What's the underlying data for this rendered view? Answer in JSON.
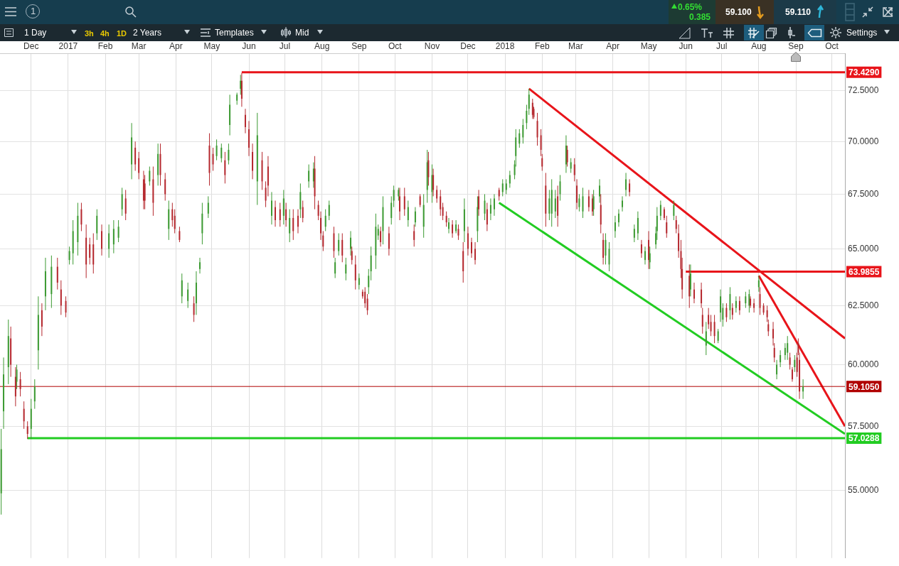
{
  "chart_data": {
    "type": "candlestick",
    "annotations": [
      "1",
      "0.65%",
      "0.385",
      "59.100",
      "59.110",
      "1 Day",
      "3h",
      "4h",
      "1D",
      "2 Years",
      "Templates",
      "Mid",
      "Settings"
    ],
    "x": [
      "2016-11-06",
      "2016-11-08",
      "2016-11-12",
      "2016-11-14",
      "2016-11-18",
      "2016-11-19",
      "2016-11-22",
      "2016-11-25",
      "2016-11-28",
      "2016-12-01",
      "2016-12-04",
      "2016-12-07",
      "2016-12-10",
      "2016-12-13",
      "2016-12-18",
      "2016-12-23",
      "2016-12-26",
      "2016-12-30",
      "2017-01-02",
      "2017-01-05",
      "2017-01-09",
      "2017-01-12",
      "2017-01-16",
      "2017-01-19",
      "2017-01-22",
      "2017-01-25",
      "2017-01-29",
      "2017-02-04",
      "2017-02-08",
      "2017-02-12",
      "2017-02-15",
      "2017-02-18",
      "2017-02-23",
      "2017-02-26",
      "2017-03-01",
      "2017-03-05",
      "2017-03-06",
      "2017-03-10",
      "2017-03-13",
      "2017-03-17",
      "2017-03-19",
      "2017-03-23",
      "2017-03-26",
      "2017-03-29",
      "2017-03-31",
      "2017-04-04",
      "2017-04-06",
      "2017-04-11",
      "2017-04-16",
      "2017-04-18",
      "2017-04-21",
      "2017-04-23",
      "2017-04-28",
      "2017-04-29",
      "2017-05-02",
      "2017-05-05",
      "2017-05-09",
      "2017-05-12",
      "2017-05-15",
      "2017-05-16",
      "2017-05-22",
      "2017-05-25",
      "2017-05-26",
      "2017-05-29",
      "2017-06-01",
      "2017-06-04",
      "2017-06-08",
      "2017-06-12",
      "2017-06-15",
      "2017-06-17",
      "2017-06-20",
      "2017-06-23",
      "2017-06-27",
      "2017-06-30",
      "2017-07-02",
      "2017-07-05",
      "2017-07-08",
      "2017-07-12",
      "2017-07-14",
      "2017-07-16",
      "2017-07-21",
      "2017-07-25",
      "2017-07-26",
      "2017-07-29",
      "2017-07-31",
      "2017-08-02",
      "2017-08-04",
      "2017-08-07",
      "2017-08-11",
      "2017-08-12",
      "2017-08-15",
      "2017-08-18",
      "2017-08-21",
      "2017-08-25",
      "2017-08-26",
      "2017-08-29",
      "2017-09-01",
      "2017-09-04",
      "2017-09-06",
      "2017-09-08",
      "2017-09-09",
      "2017-09-11",
      "2017-09-15",
      "2017-09-17",
      "2017-09-19",
      "2017-09-21",
      "2017-09-26",
      "2017-09-28",
      "2017-09-30",
      "2017-10-04",
      "2017-10-05",
      "2017-10-09",
      "2017-10-12",
      "2017-10-17",
      "2017-10-18",
      "2017-10-22",
      "2017-10-25",
      "2017-10-28",
      "2017-10-29",
      "2017-11-01",
      "2017-11-02",
      "2017-11-05",
      "2017-11-08",
      "2017-11-10",
      "2017-11-13",
      "2017-11-15",
      "2017-11-18",
      "2017-11-21",
      "2017-11-23",
      "2017-11-27",
      "2017-11-28",
      "2017-12-01",
      "2017-12-04",
      "2017-12-07",
      "2017-12-09",
      "2017-12-10",
      "2017-12-15",
      "2017-12-17",
      "2017-12-20",
      "2017-12-23",
      "2017-12-27",
      "2017-12-30",
      "2018-01-02",
      "2018-01-05",
      "2018-01-09",
      "2018-01-10",
      "2018-01-13",
      "2018-01-16",
      "2018-01-19",
      "2018-01-21",
      "2018-01-24",
      "2018-01-25",
      "2018-01-28",
      "2018-01-31",
      "2018-02-01",
      "2018-02-04",
      "2018-02-07",
      "2018-02-09",
      "2018-02-12",
      "2018-02-14",
      "2018-02-16",
      "2018-02-21",
      "2018-02-22",
      "2018-02-25",
      "2018-02-28",
      "2018-03-02",
      "2018-03-04",
      "2018-03-07",
      "2018-03-12",
      "2018-03-15",
      "2018-03-16",
      "2018-03-21",
      "2018-03-22",
      "2018-03-24",
      "2018-03-26",
      "2018-03-29",
      "2018-04-03",
      "2018-04-06",
      "2018-04-09",
      "2018-04-12",
      "2018-04-15",
      "2018-04-19",
      "2018-04-22",
      "2018-04-25",
      "2018-04-28",
      "2018-05-01",
      "2018-05-02",
      "2018-05-07",
      "2018-05-08",
      "2018-05-11",
      "2018-05-14",
      "2018-05-16",
      "2018-05-22",
      "2018-05-24",
      "2018-05-26",
      "2018-05-28",
      "2018-05-29",
      "2018-06-04",
      "2018-06-05",
      "2018-06-08",
      "2018-06-14",
      "2018-06-15",
      "2018-06-18",
      "2018-06-20",
      "2018-06-22",
      "2018-06-25",
      "2018-06-28",
      "2018-06-30",
      "2018-07-02",
      "2018-07-05",
      "2018-07-08",
      "2018-07-10",
      "2018-07-13",
      "2018-07-16",
      "2018-07-21",
      "2018-07-24",
      "2018-07-25",
      "2018-07-28",
      "2018-08-01",
      "2018-08-02",
      "2018-08-05",
      "2018-08-08",
      "2018-08-09",
      "2018-08-13",
      "2018-08-14",
      "2018-08-16",
      "2018-08-19",
      "2018-08-23",
      "2018-08-25",
      "2018-08-27",
      "2018-08-29",
      "2018-08-31",
      "2018-09-02",
      "2018-09-03",
      "2018-09-04",
      "2018-09-07"
    ],
    "ohlc": [
      [
        54.9,
        57.4,
        54.1,
        56.6
      ],
      [
        58.1,
        60.3,
        57.4,
        59.6
      ],
      [
        59.9,
        61.9,
        59.2,
        61.2
      ],
      [
        61.1,
        61.6,
        59.5,
        60.0
      ],
      [
        59.5,
        59.9,
        58.3,
        58.7
      ],
      [
        59.3,
        60.0,
        59.0,
        59.8
      ],
      [
        59.4,
        59.7,
        58.7,
        59.0
      ],
      [
        58.2,
        58.5,
        57.4,
        57.7
      ],
      [
        57.5,
        57.7,
        57.0,
        57.2
      ],
      [
        57.4,
        58.6,
        57.0,
        58.2
      ],
      [
        58.5,
        59.4,
        58.2,
        59.1
      ],
      [
        60.6,
        62.9,
        59.8,
        62.1
      ],
      [
        62.3,
        62.6,
        61.2,
        61.6
      ],
      [
        62.9,
        64.6,
        62.3,
        64.0
      ],
      [
        63.0,
        64.7,
        62.4,
        64.2
      ],
      [
        64.2,
        64.6,
        63.2,
        63.5
      ],
      [
        63.2,
        63.6,
        62.1,
        62.5
      ],
      [
        62.7,
        62.9,
        62.0,
        62.2
      ],
      [
        64.5,
        65.1,
        64.3,
        64.9
      ],
      [
        64.8,
        66.3,
        64.3,
        65.8
      ],
      [
        65.3,
        67.1,
        64.7,
        66.5
      ],
      [
        66.8,
        67.1,
        65.8,
        66.1
      ],
      [
        65.5,
        66.1,
        63.7,
        64.3
      ],
      [
        65.2,
        65.5,
        64.3,
        64.6
      ],
      [
        65.2,
        65.7,
        63.9,
        64.3
      ],
      [
        65.7,
        66.8,
        65.4,
        66.5
      ],
      [
        65.8,
        66.1,
        64.7,
        65.0
      ],
      [
        65.0,
        66.1,
        64.6,
        65.7
      ],
      [
        65.2,
        66.3,
        64.8,
        65.9
      ],
      [
        65.5,
        66.3,
        65.3,
        66.0
      ],
      [
        66.8,
        67.8,
        66.5,
        67.5
      ],
      [
        67.3,
        67.7,
        66.3,
        66.6
      ],
      [
        68.9,
        70.9,
        68.2,
        70.2
      ],
      [
        69.7,
        70.0,
        68.6,
        68.9
      ],
      [
        69.2,
        69.5,
        68.2,
        68.5
      ],
      [
        68.2,
        68.6,
        66.8,
        67.2
      ],
      [
        68.0,
        68.4,
        66.8,
        67.2
      ],
      [
        68.1,
        68.8,
        67.9,
        68.6
      ],
      [
        68.2,
        68.8,
        66.5,
        67.1
      ],
      [
        68.4,
        69.9,
        67.9,
        69.4
      ],
      [
        69.4,
        69.9,
        67.9,
        68.4
      ],
      [
        68.2,
        68.5,
        67.2,
        67.5
      ],
      [
        65.9,
        67.2,
        65.4,
        66.8
      ],
      [
        66.8,
        67.1,
        66.0,
        66.3
      ],
      [
        66.5,
        66.8,
        65.7,
        65.9
      ],
      [
        65.8,
        66.0,
        65.3,
        65.4
      ],
      [
        62.9,
        63.9,
        62.6,
        63.6
      ],
      [
        62.7,
        63.5,
        62.4,
        63.2
      ],
      [
        62.6,
        62.9,
        61.8,
        62.1
      ],
      [
        62.6,
        64.0,
        62.1,
        63.5
      ],
      [
        64.1,
        64.6,
        63.9,
        64.4
      ],
      [
        65.7,
        67.1,
        65.2,
        66.6
      ],
      [
        66.6,
        67.4,
        66.4,
        67.1
      ],
      [
        69.8,
        70.4,
        67.9,
        68.5
      ],
      [
        69.4,
        69.7,
        68.6,
        68.9
      ],
      [
        69.3,
        70.1,
        69.1,
        69.8
      ],
      [
        69.2,
        69.9,
        69.0,
        69.7
      ],
      [
        69.1,
        69.5,
        68.0,
        68.4
      ],
      [
        69.1,
        69.9,
        68.9,
        69.6
      ],
      [
        70.8,
        72.3,
        70.3,
        71.8
      ],
      [
        72.0,
        72.4,
        71.8,
        72.3
      ],
      [
        72.6,
        73.3,
        72.3,
        73.0
      ],
      [
        73.0,
        73.4,
        71.7,
        72.1
      ],
      [
        71.3,
        71.6,
        70.4,
        70.7
      ],
      [
        70.6,
        71.0,
        69.3,
        69.7
      ],
      [
        69.5,
        69.9,
        68.2,
        68.6
      ],
      [
        68.1,
        71.4,
        67.0,
        70.3
      ],
      [
        69.1,
        69.5,
        67.7,
        68.1
      ],
      [
        67.8,
        68.1,
        66.9,
        67.2
      ],
      [
        68.8,
        69.3,
        67.4,
        67.9
      ],
      [
        66.5,
        67.6,
        66.1,
        67.2
      ],
      [
        66.9,
        67.2,
        66.0,
        66.3
      ],
      [
        66.8,
        67.1,
        66.0,
        66.3
      ],
      [
        66.5,
        67.7,
        66.1,
        67.3
      ],
      [
        66.8,
        67.1,
        66.0,
        66.3
      ],
      [
        65.7,
        66.8,
        65.3,
        66.4
      ],
      [
        66.4,
        66.8,
        65.4,
        65.8
      ],
      [
        66.5,
        66.8,
        65.7,
        66.0
      ],
      [
        66.8,
        68.0,
        66.4,
        67.6
      ],
      [
        66.9,
        67.2,
        66.2,
        66.4
      ],
      [
        68.1,
        68.9,
        67.8,
        68.6
      ],
      [
        68.1,
        69.0,
        67.8,
        68.7
      ],
      [
        68.7,
        69.3,
        66.8,
        67.4
      ],
      [
        67.0,
        67.2,
        66.3,
        66.5
      ],
      [
        66.4,
        66.7,
        65.4,
        65.7
      ],
      [
        65.6,
        65.8,
        64.9,
        65.1
      ],
      [
        66.0,
        66.8,
        65.8,
        66.5
      ],
      [
        66.5,
        67.2,
        66.3,
        67.0
      ],
      [
        65.7,
        66.0,
        64.6,
        64.9
      ],
      [
        63.9,
        64.6,
        63.7,
        64.4
      ],
      [
        64.9,
        65.7,
        64.7,
        65.4
      ],
      [
        65.4,
        65.7,
        64.4,
        64.7
      ],
      [
        63.9,
        64.6,
        63.6,
        64.3
      ],
      [
        65.0,
        65.8,
        64.7,
        65.5
      ],
      [
        64.9,
        65.1,
        64.3,
        64.5
      ],
      [
        64.3,
        64.7,
        63.2,
        63.6
      ],
      [
        63.4,
        63.9,
        63.2,
        63.7
      ],
      [
        63.1,
        63.2,
        62.8,
        62.9
      ],
      [
        63.1,
        63.3,
        62.4,
        62.6
      ],
      [
        62.8,
        63.0,
        62.1,
        62.3
      ],
      [
        63.3,
        64.1,
        63.0,
        63.8
      ],
      [
        64.0,
        65.1,
        63.6,
        64.7
      ],
      [
        64.7,
        66.6,
        64.1,
        66.0
      ],
      [
        65.6,
        66.1,
        65.4,
        65.9
      ],
      [
        65.8,
        66.0,
        65.1,
        65.3
      ],
      [
        65.8,
        67.4,
        65.2,
        66.9
      ],
      [
        65.7,
        66.0,
        64.7,
        65.0
      ],
      [
        66.4,
        67.4,
        66.1,
        67.1
      ],
      [
        67.2,
        67.9,
        66.9,
        67.7
      ],
      [
        67.4,
        67.8,
        67.2,
        67.7
      ],
      [
        67.4,
        67.8,
        66.3,
        66.7
      ],
      [
        67.4,
        67.8,
        66.5,
        66.8
      ],
      [
        66.3,
        67.2,
        66.0,
        66.9
      ],
      [
        65.8,
        66.1,
        65.1,
        65.4
      ],
      [
        66.2,
        66.9,
        66.0,
        66.7
      ],
      [
        67.4,
        67.5,
        66.9,
        67.0
      ],
      [
        66.0,
        67.5,
        65.5,
        67.0
      ],
      [
        67.7,
        69.6,
        67.1,
        69.0
      ],
      [
        69.1,
        69.5,
        67.9,
        68.3
      ],
      [
        67.6,
        68.9,
        67.1,
        68.4
      ],
      [
        68.4,
        68.7,
        67.4,
        67.7
      ],
      [
        67.7,
        67.9,
        67.1,
        67.3
      ],
      [
        67.4,
        67.7,
        66.5,
        66.8
      ],
      [
        66.9,
        67.1,
        66.3,
        66.5
      ],
      [
        66.5,
        66.7,
        66.0,
        66.2
      ],
      [
        65.9,
        66.4,
        65.7,
        66.2
      ],
      [
        66.1,
        66.3,
        65.5,
        65.7
      ],
      [
        65.8,
        66.3,
        65.7,
        66.1
      ],
      [
        65.9,
        66.1,
        65.4,
        65.6
      ],
      [
        64.9,
        65.3,
        63.5,
        64.0
      ],
      [
        65.8,
        67.3,
        65.3,
        66.8
      ],
      [
        65.7,
        66.0,
        64.7,
        65.0
      ],
      [
        65.3,
        65.5,
        64.6,
        64.8
      ],
      [
        65.0,
        65.3,
        64.3,
        64.5
      ],
      [
        65.8,
        67.4,
        65.3,
        66.9
      ],
      [
        67.4,
        67.7,
        66.5,
        66.8
      ],
      [
        66.6,
        67.5,
        66.3,
        67.2
      ],
      [
        66.8,
        67.1,
        65.8,
        66.1
      ],
      [
        66.6,
        67.3,
        66.3,
        67.0
      ],
      [
        66.8,
        67.5,
        66.5,
        67.3
      ],
      [
        67.7,
        67.8,
        67.2,
        67.4
      ],
      [
        67.6,
        68.2,
        67.4,
        68.0
      ],
      [
        67.7,
        68.2,
        67.5,
        68.0
      ],
      [
        68.0,
        68.6,
        67.8,
        68.4
      ],
      [
        68.4,
        69.1,
        68.2,
        68.9
      ],
      [
        69.3,
        70.6,
        68.8,
        70.2
      ],
      [
        69.9,
        70.6,
        69.7,
        70.4
      ],
      [
        70.2,
        71.1,
        69.9,
        70.8
      ],
      [
        70.9,
        71.8,
        70.6,
        71.5
      ],
      [
        71.6,
        72.6,
        71.3,
        72.3
      ],
      [
        71.9,
        72.1,
        71.1,
        71.3
      ],
      [
        71.6,
        71.7,
        71.1,
        71.2
      ],
      [
        71.0,
        71.4,
        69.8,
        70.2
      ],
      [
        70.3,
        70.6,
        69.3,
        69.6
      ],
      [
        69.2,
        69.4,
        68.6,
        68.8
      ],
      [
        67.9,
        68.5,
        66.0,
        66.6
      ],
      [
        66.6,
        67.7,
        66.3,
        67.3
      ],
      [
        66.6,
        68.2,
        66.0,
        67.7
      ],
      [
        66.7,
        67.7,
        66.4,
        67.3
      ],
      [
        67.4,
        67.9,
        66.0,
        66.5
      ],
      [
        67.5,
        68.4,
        67.2,
        68.1
      ],
      [
        68.9,
        70.3,
        68.5,
        69.8
      ],
      [
        69.6,
        69.8,
        68.8,
        69.0
      ],
      [
        68.7,
        69.2,
        68.5,
        69.0
      ],
      [
        68.9,
        69.2,
        68.1,
        68.4
      ],
      [
        67.9,
        68.2,
        66.8,
        67.1
      ],
      [
        66.9,
        67.5,
        66.7,
        67.3
      ],
      [
        66.7,
        67.8,
        66.4,
        67.4
      ],
      [
        67.4,
        67.7,
        66.7,
        66.9
      ],
      [
        67.3,
        67.5,
        66.5,
        66.7
      ],
      [
        66.8,
        67.7,
        66.5,
        67.4
      ],
      [
        67.4,
        68.2,
        67.1,
        67.9
      ],
      [
        67.0,
        67.5,
        65.7,
        66.1
      ],
      [
        65.4,
        65.7,
        64.3,
        64.6
      ],
      [
        64.7,
        65.7,
        64.3,
        65.4
      ],
      [
        64.3,
        65.3,
        64.0,
        65.0
      ],
      [
        65.8,
        66.5,
        65.5,
        66.2
      ],
      [
        66.2,
        66.8,
        66.0,
        66.6
      ],
      [
        66.9,
        67.4,
        66.7,
        67.2
      ],
      [
        67.7,
        68.5,
        67.4,
        68.2
      ],
      [
        68.0,
        68.2,
        67.4,
        67.6
      ],
      [
        65.5,
        66.1,
        65.3,
        65.9
      ],
      [
        65.7,
        66.7,
        65.4,
        66.4
      ],
      [
        65.2,
        65.4,
        64.6,
        64.8
      ],
      [
        64.5,
        65.1,
        64.3,
        64.9
      ],
      [
        65.4,
        65.8,
        64.1,
        64.5
      ],
      [
        64.4,
        65.1,
        64.1,
        64.8
      ],
      [
        65.2,
        66.0,
        65.0,
        65.7
      ],
      [
        65.8,
        66.9,
        65.4,
        66.5
      ],
      [
        66.5,
        67.2,
        66.3,
        67.0
      ],
      [
        66.8,
        66.9,
        66.3,
        66.4
      ],
      [
        66.2,
        66.5,
        65.5,
        65.7
      ],
      [
        66.5,
        67.2,
        66.3,
        67.0
      ],
      [
        66.3,
        66.5,
        65.7,
        65.9
      ],
      [
        65.7,
        66.1,
        64.6,
        64.9
      ],
      [
        64.9,
        65.4,
        63.7,
        64.1
      ],
      [
        64.1,
        64.6,
        62.8,
        63.2
      ],
      [
        63.8,
        64.3,
        62.4,
        62.9
      ],
      [
        63.2,
        64.3,
        62.9,
        63.9
      ],
      [
        63.2,
        63.5,
        62.6,
        62.8
      ],
      [
        63.2,
        63.5,
        62.4,
        62.6
      ],
      [
        62.1,
        62.4,
        61.3,
        61.6
      ],
      [
        60.8,
        61.8,
        60.4,
        61.4
      ],
      [
        62.1,
        62.4,
        61.5,
        61.7
      ],
      [
        61.8,
        62.1,
        61.2,
        61.4
      ],
      [
        61.8,
        62.1,
        60.9,
        61.2
      ],
      [
        61.0,
        61.5,
        60.9,
        61.4
      ],
      [
        62.2,
        63.2,
        61.8,
        62.9
      ],
      [
        61.9,
        62.6,
        61.6,
        62.4
      ],
      [
        62.4,
        62.6,
        61.8,
        62.0
      ],
      [
        62.3,
        63.3,
        61.9,
        63.0
      ],
      [
        62.4,
        62.6,
        61.9,
        62.1
      ],
      [
        62.4,
        62.9,
        62.2,
        62.7
      ],
      [
        62.7,
        62.9,
        62.1,
        62.3
      ],
      [
        62.6,
        63.1,
        62.4,
        62.9
      ],
      [
        62.5,
        63.2,
        62.2,
        63.0
      ],
      [
        62.8,
        62.9,
        62.4,
        62.5
      ],
      [
        62.6,
        62.8,
        62.2,
        62.4
      ],
      [
        63.3,
        63.8,
        63.1,
        63.6
      ],
      [
        63.0,
        63.3,
        62.1,
        62.4
      ],
      [
        62.5,
        62.6,
        62.1,
        62.2
      ],
      [
        62.3,
        62.5,
        61.8,
        62.0
      ],
      [
        61.7,
        61.9,
        61.2,
        61.4
      ],
      [
        61.5,
        61.8,
        60.8,
        61.1
      ],
      [
        60.7,
        60.9,
        60.1,
        60.3
      ],
      [
        59.6,
        60.2,
        59.4,
        60.0
      ],
      [
        60.1,
        60.6,
        59.9,
        60.4
      ],
      [
        60.4,
        60.9,
        60.2,
        60.7
      ],
      [
        60.5,
        61.2,
        60.2,
        60.9
      ],
      [
        60.3,
        60.5,
        59.8,
        60.0
      ],
      [
        59.8,
        59.9,
        59.3,
        59.4
      ],
      [
        59.9,
        60.4,
        59.7,
        60.2
      ],
      [
        60.3,
        60.5,
        59.5,
        59.7
      ],
      [
        60.9,
        61.1,
        60.4,
        60.5
      ],
      [
        60.2,
        60.5,
        58.6,
        58.9
      ],
      [
        58.9,
        59.4,
        58.6,
        59.1
      ]
    ],
    "colors": [
      "#3c9a32",
      "#3c9a32",
      "#3c9a32",
      "#b5282e",
      "#b5282e",
      "#3c9a32",
      "#b5282e",
      "#b5282e",
      "#b5282e",
      "#3c9a32",
      "#3c9a32",
      "#3c9a32",
      "#b5282e",
      "#3c9a32",
      "#3c9a32",
      "#b5282e",
      "#b5282e",
      "#b5282e",
      "#3c9a32",
      "#3c9a32",
      "#3c9a32",
      "#b5282e",
      "#b5282e",
      "#b5282e",
      "#b5282e",
      "#3c9a32",
      "#b5282e",
      "#3c9a32",
      "#3c9a32",
      "#3c9a32",
      "#3c9a32",
      "#b5282e",
      "#3c9a32",
      "#b5282e",
      "#b5282e",
      "#b5282e",
      "#b5282e",
      "#3c9a32",
      "#b5282e",
      "#3c9a32",
      "#b5282e",
      "#b5282e",
      "#3c9a32",
      "#b5282e",
      "#b5282e",
      "#b5282e",
      "#3c9a32",
      "#3c9a32",
      "#b5282e",
      "#3c9a32",
      "#3c9a32",
      "#3c9a32",
      "#3c9a32",
      "#b5282e",
      "#b5282e",
      "#3c9a32",
      "#3c9a32",
      "#b5282e",
      "#3c9a32",
      "#3c9a32",
      "#3c9a32",
      "#3c9a32",
      "#b5282e",
      "#b5282e",
      "#b5282e",
      "#b5282e",
      "#3c9a32",
      "#b5282e",
      "#b5282e",
      "#b5282e",
      "#3c9a32",
      "#b5282e",
      "#b5282e",
      "#3c9a32",
      "#b5282e",
      "#3c9a32",
      "#b5282e",
      "#b5282e",
      "#3c9a32",
      "#b5282e",
      "#3c9a32",
      "#3c9a32",
      "#b5282e",
      "#b5282e",
      "#b5282e",
      "#b5282e",
      "#3c9a32",
      "#3c9a32",
      "#b5282e",
      "#3c9a32",
      "#3c9a32",
      "#b5282e",
      "#3c9a32",
      "#3c9a32",
      "#b5282e",
      "#b5282e",
      "#3c9a32",
      "#b5282e",
      "#b5282e",
      "#b5282e",
      "#3c9a32",
      "#3c9a32",
      "#3c9a32",
      "#3c9a32",
      "#b5282e",
      "#3c9a32",
      "#b5282e",
      "#3c9a32",
      "#3c9a32",
      "#3c9a32",
      "#b5282e",
      "#b5282e",
      "#3c9a32",
      "#b5282e",
      "#3c9a32",
      "#b5282e",
      "#3c9a32",
      "#3c9a32",
      "#b5282e",
      "#3c9a32",
      "#b5282e",
      "#b5282e",
      "#b5282e",
      "#b5282e",
      "#b5282e",
      "#3c9a32",
      "#b5282e",
      "#3c9a32",
      "#b5282e",
      "#b5282e",
      "#3c9a32",
      "#b5282e",
      "#b5282e",
      "#b5282e",
      "#3c9a32",
      "#b5282e",
      "#3c9a32",
      "#b5282e",
      "#3c9a32",
      "#3c9a32",
      "#b5282e",
      "#3c9a32",
      "#3c9a32",
      "#3c9a32",
      "#3c9a32",
      "#3c9a32",
      "#3c9a32",
      "#3c9a32",
      "#3c9a32",
      "#3c9a32",
      "#b5282e",
      "#b5282e",
      "#b5282e",
      "#b5282e",
      "#b5282e",
      "#b5282e",
      "#3c9a32",
      "#3c9a32",
      "#3c9a32",
      "#b5282e",
      "#3c9a32",
      "#3c9a32",
      "#b5282e",
      "#3c9a32",
      "#b5282e",
      "#b5282e",
      "#3c9a32",
      "#3c9a32",
      "#b5282e",
      "#b5282e",
      "#3c9a32",
      "#3c9a32",
      "#b5282e",
      "#b5282e",
      "#3c9a32",
      "#3c9a32",
      "#3c9a32",
      "#3c9a32",
      "#3c9a32",
      "#3c9a32",
      "#b5282e",
      "#3c9a32",
      "#3c9a32",
      "#b5282e",
      "#3c9a32",
      "#b5282e",
      "#3c9a32",
      "#3c9a32",
      "#3c9a32",
      "#3c9a32",
      "#b5282e",
      "#b5282e",
      "#3c9a32",
      "#b5282e",
      "#b5282e",
      "#b5282e",
      "#b5282e",
      "#b5282e",
      "#3c9a32",
      "#b5282e",
      "#b5282e",
      "#b5282e",
      "#3c9a32",
      "#b5282e",
      "#b5282e",
      "#b5282e",
      "#3c9a32",
      "#3c9a32",
      "#3c9a32",
      "#b5282e",
      "#3c9a32",
      "#b5282e",
      "#3c9a32",
      "#b5282e",
      "#3c9a32",
      "#3c9a32",
      "#b5282e",
      "#b5282e",
      "#3c9a32",
      "#b5282e",
      "#b5282e",
      "#b5282e",
      "#b5282e",
      "#b5282e",
      "#b5282e",
      "#3c9a32",
      "#3c9a32",
      "#3c9a32",
      "#3c9a32",
      "#b5282e",
      "#b5282e",
      "#3c9a32",
      "#b5282e",
      "#b5282e",
      "#b5282e",
      "#3c9a32"
    ],
    "series": [
      {
        "type": "line",
        "name": "73.4290",
        "color": "#e8141a",
        "x": [
          "2017-05-26",
          "2018-10-12"
        ],
        "values": [
          73.429,
          73.429
        ]
      },
      {
        "type": "line",
        "name": "63.9855",
        "color": "#e8141a",
        "x": [
          "2018-06-01",
          "2018-10-12"
        ],
        "values": [
          63.9855,
          63.9855
        ]
      },
      {
        "type": "line",
        "name": "57.0288",
        "color": "#22cc22",
        "x": [
          "2016-11-28",
          "2018-10-12"
        ],
        "values": [
          57.0288,
          57.0288
        ]
      },
      {
        "type": "line",
        "color": "#e8141a",
        "x": [
          "2018-01-21",
          "2018-10-12"
        ],
        "values": [
          72.6,
          61.1
        ]
      },
      {
        "type": "line",
        "color": "#22cc22",
        "x": [
          "2017-12-27",
          "2018-10-12"
        ],
        "values": [
          67.1,
          57.2
        ]
      },
      {
        "type": "line",
        "color": "#e8141a",
        "x": [
          "2018-08-01",
          "2018-10-12"
        ],
        "values": [
          63.8,
          57.5
        ]
      }
    ],
    "ref_lines": [
      {
        "axis": "y",
        "value": 59.105,
        "label": "59.1050",
        "color": "#b00000"
      }
    ],
    "xlim": [
      "2016-11-05",
      "2018-10-12"
    ],
    "xticks": [
      {
        "value": "2016-12-01",
        "label": "Dec"
      },
      {
        "value": "2017-01-01",
        "label": "2017"
      },
      {
        "value": "2017-02-01",
        "label": "Feb"
      },
      {
        "value": "2017-03-01",
        "label": "Mar"
      },
      {
        "value": "2017-04-01",
        "label": "Apr"
      },
      {
        "value": "2017-05-01",
        "label": "May"
      },
      {
        "value": "2017-06-01",
        "label": "Jun"
      },
      {
        "value": "2017-07-01",
        "label": "Jul"
      },
      {
        "value": "2017-08-01",
        "label": "Aug"
      },
      {
        "value": "2017-09-01",
        "label": "Sep"
      },
      {
        "value": "2017-10-01",
        "label": "Oct"
      },
      {
        "value": "2017-11-01",
        "label": "Nov"
      },
      {
        "value": "2017-12-01",
        "label": "Dec"
      },
      {
        "value": "2018-01-01",
        "label": "2018"
      },
      {
        "value": "2018-02-01",
        "label": "Feb"
      },
      {
        "value": "2018-03-01",
        "label": "Mar"
      },
      {
        "value": "2018-04-01",
        "label": "Apr"
      },
      {
        "value": "2018-05-01",
        "label": "May"
      },
      {
        "value": "2018-06-01",
        "label": "Jun"
      },
      {
        "value": "2018-07-01",
        "label": "Jul"
      },
      {
        "value": "2018-08-01",
        "label": "Aug"
      },
      {
        "value": "2018-09-01",
        "label": "Sep"
      },
      {
        "value": "2018-10-01",
        "label": "Oct"
      }
    ],
    "ylim": [
      52.5,
      74.4
    ],
    "yticks": [
      {
        "value": 55,
        "label": "55.0000"
      },
      {
        "value": 57.5,
        "label": "57.5000"
      },
      {
        "value": 60,
        "label": "60.0000"
      },
      {
        "value": 62.5,
        "label": "62.5000"
      },
      {
        "value": 65,
        "label": "65.0000"
      },
      {
        "value": 67.5,
        "label": "67.5000"
      },
      {
        "value": 70,
        "label": "70.0000"
      },
      {
        "value": 72.5,
        "label": "72.5000"
      }
    ],
    "log": true,
    "grid": true
  }
}
